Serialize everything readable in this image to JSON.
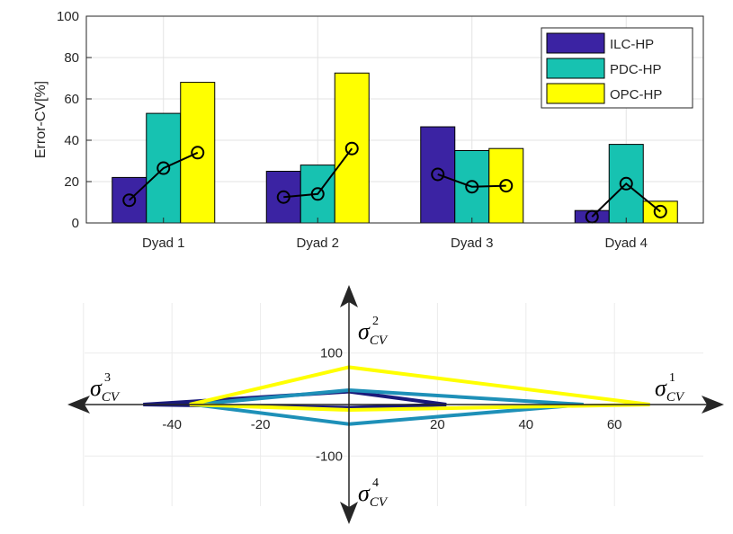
{
  "chart_data": [
    {
      "type": "bar",
      "ylabel": "Error-CV[%]",
      "ylim": [
        0,
        100
      ],
      "yticks": [
        0,
        20,
        40,
        60,
        80,
        100
      ],
      "categories": [
        "Dyad 1",
        "Dyad 2",
        "Dyad 3",
        "Dyad 4"
      ],
      "series": [
        {
          "name": "ILC-HP",
          "color": "#3b23a3",
          "values": [
            22,
            25,
            46.5,
            6
          ]
        },
        {
          "name": "PDC-HP",
          "color": "#17c2b1",
          "values": [
            53,
            28,
            35,
            38
          ]
        },
        {
          "name": "OPC-HP",
          "color": "#ffff00",
          "values": [
            68,
            72.5,
            36,
            10.5
          ]
        }
      ],
      "overlay_line": {
        "marker": "circle",
        "color": "#000000",
        "values": [
          [
            11,
            26.5,
            34
          ],
          [
            12.5,
            14,
            36
          ],
          [
            23.5,
            17.5,
            18
          ],
          [
            3,
            19,
            5.5
          ]
        ]
      },
      "legend": "top-right",
      "grid": true
    },
    {
      "type": "line",
      "description": "kite plot on four axes",
      "xticks": [
        -40,
        -20,
        20,
        40,
        60
      ],
      "yticks": [
        100,
        -100
      ],
      "xlim": [
        -60,
        80
      ],
      "ylim": [
        -185,
        195
      ],
      "axis_labels": {
        "right": {
          "base": "σ",
          "sub": "CV",
          "sup": "1"
        },
        "top": {
          "base": "σ",
          "sub": "CV",
          "sup": "2"
        },
        "left": {
          "base": "σ",
          "sub": "CV",
          "sup": "3"
        },
        "bottom": {
          "base": "σ",
          "sub": "CV",
          "sup": "4"
        }
      },
      "series": [
        {
          "name": "ILC-HP",
          "color": "#1a1a7a",
          "points": [
            [
              22,
              0
            ],
            [
              0,
              25
            ],
            [
              -46.5,
              0
            ],
            [
              0,
              -6
            ]
          ]
        },
        {
          "name": "PDC-HP",
          "color": "#1e90b8",
          "points": [
            [
              53,
              0
            ],
            [
              0,
              28
            ],
            [
              -35,
              0
            ],
            [
              0,
              -38
            ]
          ]
        },
        {
          "name": "OPC-HP",
          "color": "#ffff00",
          "points": [
            [
              68,
              0
            ],
            [
              0,
              72.5
            ],
            [
              -36,
              0
            ],
            [
              0,
              -10.5
            ]
          ]
        }
      ],
      "grid": true
    }
  ]
}
